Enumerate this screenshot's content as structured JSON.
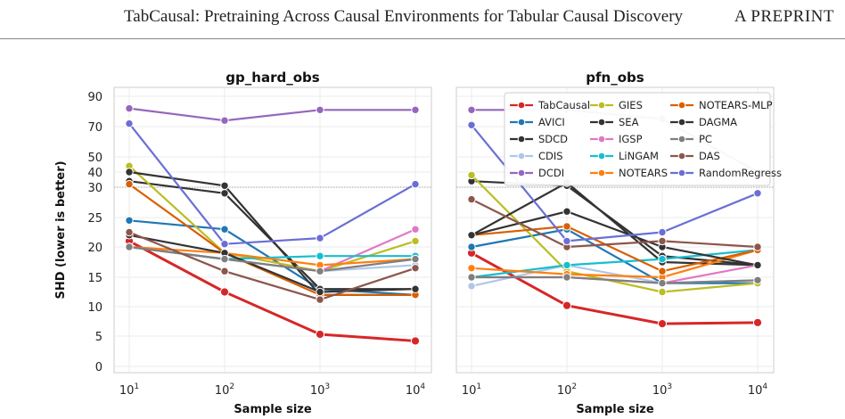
{
  "header": {
    "title": "TabCausal: Pretraining Across Causal Environments for Tabular Causal Discovery",
    "label": "A PREPRINT"
  },
  "chart_data": [
    {
      "type": "line",
      "title": "gp_hard_obs",
      "xlabel": "Sample size",
      "ylabel": "SHD (lower is better)",
      "x": [
        10,
        100,
        1000,
        10000
      ],
      "x_tick_labels": [
        {
          "base": "10",
          "exp": "1"
        },
        {
          "base": "10",
          "exp": "2"
        },
        {
          "base": "10",
          "exp": "3"
        },
        {
          "base": "10",
          "exp": "4"
        }
      ],
      "y_ticks": [
        0,
        5,
        10,
        15,
        20,
        25,
        30,
        40,
        50,
        70,
        90
      ],
      "ylim": [
        0,
        90
      ],
      "reference_line": 30,
      "grid": true,
      "series": [
        {
          "name": "TabCausal",
          "color": "#d62728",
          "values": [
            21,
            12.5,
            5.3,
            4.2
          ]
        },
        {
          "name": "AVICI",
          "color": "#1f77b4",
          "values": [
            24.5,
            23,
            13,
            12
          ]
        },
        {
          "name": "SDCD",
          "color": "#333333",
          "values": [
            34,
            29,
            13,
            13
          ]
        },
        {
          "name": "CDIS",
          "color": "#aec7e8",
          "values": [
            20,
            18,
            16,
            17
          ]
        },
        {
          "name": "DCDI",
          "color": "#9467bd",
          "values": [
            82,
            74,
            81,
            81
          ]
        },
        {
          "name": "GIES",
          "color": "#bcbd22",
          "values": [
            44,
            19,
            16,
            21
          ]
        },
        {
          "name": "SEA",
          "color": "#333333",
          "values": [
            40,
            31,
            12,
            12
          ]
        },
        {
          "name": "IGSP",
          "color": "#e377c2",
          "values": [
            20,
            18,
            16,
            23
          ]
        },
        {
          "name": "LiNGAM",
          "color": "#17becf",
          "values": [
            20,
            18,
            18.5,
            18.5
          ]
        },
        {
          "name": "NOTEARS",
          "color": "#ff7f0e",
          "values": [
            20,
            19,
            17,
            18
          ]
        },
        {
          "name": "NOTEARS-MLP",
          "color": "#d95f02",
          "values": [
            32,
            19,
            12,
            12
          ]
        },
        {
          "name": "DAGMA",
          "color": "#333333",
          "values": [
            22,
            19,
            12.5,
            13
          ]
        },
        {
          "name": "PC",
          "color": "#7f7f7f",
          "values": [
            20,
            18,
            16,
            18
          ]
        },
        {
          "name": "DAS",
          "color": "#8c564b",
          "values": [
            22.5,
            16,
            11.2,
            16.5
          ]
        },
        {
          "name": "RandomRegress",
          "color": "#6a6fd6",
          "values": [
            72,
            20.5,
            21.5,
            32
          ]
        }
      ]
    },
    {
      "type": "line",
      "title": "pfn_obs",
      "xlabel": "Sample size",
      "x": [
        10,
        100,
        1000,
        10000
      ],
      "x_tick_labels": [
        {
          "base": "10",
          "exp": "1"
        },
        {
          "base": "10",
          "exp": "2"
        },
        {
          "base": "10",
          "exp": "3"
        },
        {
          "base": "10",
          "exp": "4"
        }
      ],
      "ylim": [
        0,
        90
      ],
      "reference_line": 30,
      "grid": true,
      "legend": "top-right, 3 columns",
      "series": [
        {
          "name": "TabCausal",
          "color": "#d62728",
          "values": [
            19,
            10.2,
            7.1,
            7.3
          ]
        },
        {
          "name": "AVICI",
          "color": "#1f77b4",
          "values": [
            20,
            23,
            14,
            14
          ]
        },
        {
          "name": "SDCD",
          "color": "#333333",
          "values": [
            34,
            31,
            18.5,
            17
          ]
        },
        {
          "name": "CDIS",
          "color": "#aec7e8",
          "values": [
            13.5,
            17,
            14,
            14.5
          ]
        },
        {
          "name": "DCDI",
          "color": "#9467bd",
          "values": [
            81,
            81,
            75,
            40
          ]
        },
        {
          "name": "GIES",
          "color": "#bcbd22",
          "values": [
            38,
            16,
            12.5,
            14
          ]
        },
        {
          "name": "SEA",
          "color": "#333333",
          "values": [
            22,
            33,
            17.5,
            17
          ]
        },
        {
          "name": "IGSP",
          "color": "#e377c2",
          "values": [
            15,
            15,
            14,
            17
          ]
        },
        {
          "name": "LiNGAM",
          "color": "#17becf",
          "values": [
            15,
            17,
            18,
            19.5
          ]
        },
        {
          "name": "NOTEARS",
          "color": "#ff7f0e",
          "values": [
            16.5,
            15.5,
            15,
            19.5
          ]
        },
        {
          "name": "NOTEARS-MLP",
          "color": "#d95f02",
          "values": [
            22,
            23.5,
            16,
            19.5
          ]
        },
        {
          "name": "DAGMA",
          "color": "#333333",
          "values": [
            22,
            26,
            20,
            17
          ]
        },
        {
          "name": "PC",
          "color": "#7f7f7f",
          "values": [
            15,
            15,
            14,
            14.5
          ]
        },
        {
          "name": "DAS",
          "color": "#8c564b",
          "values": [
            28,
            20,
            21,
            20
          ]
        },
        {
          "name": "RandomRegress",
          "color": "#6a6fd6",
          "values": [
            71,
            21,
            22.5,
            29
          ]
        }
      ]
    }
  ]
}
